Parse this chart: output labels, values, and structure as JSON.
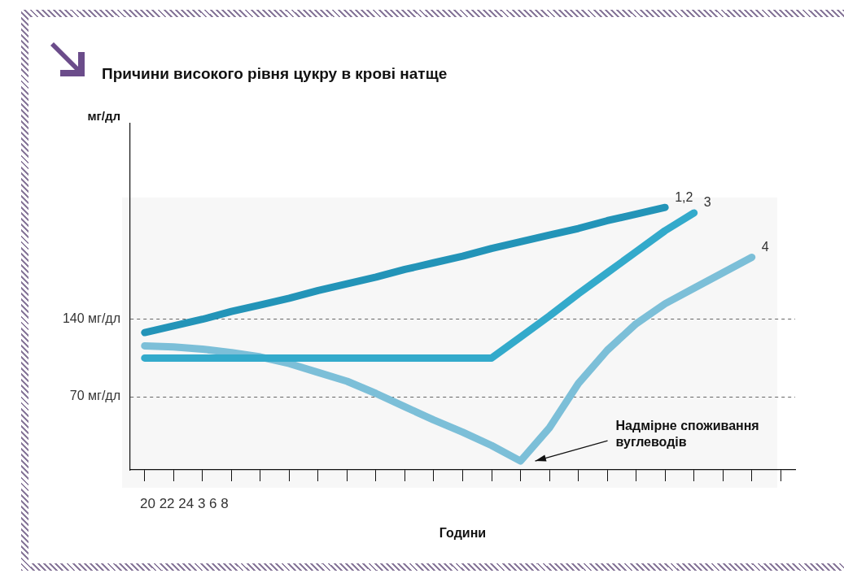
{
  "chart_data": {
    "type": "line",
    "title": "Причини високого рівня цукру в крові натще",
    "xlabel": "Години",
    "ylabel": "мг/дл",
    "categories": [
      null,
      null,
      null,
      null,
      null,
      null,
      null,
      null,
      null,
      null,
      null,
      null,
      null,
      null,
      null,
      null,
      null,
      null,
      null,
      null,
      null,
      null,
      null
    ],
    "ylim": [
      4,
      317
    ],
    "yticks": [
      {
        "value": 70,
        "label": "70 мг/дл"
      },
      {
        "value": 140,
        "label": "140 мг/дл"
      }
    ],
    "grid": "y",
    "line_style": "solid",
    "marker": "none",
    "legend": false,
    "series": [
      {
        "name": "1,2",
        "color": "#2394b8",
        "values": [
          128,
          134,
          140,
          147,
          153,
          159,
          166,
          172,
          178,
          185,
          191,
          197,
          204,
          210,
          216,
          222,
          229,
          235,
          241,
          null,
          null,
          null,
          null
        ]
      },
      {
        "name": "3",
        "color": "#33aacb",
        "values": [
          105,
          105,
          105,
          105,
          105,
          105,
          105,
          105,
          105,
          105,
          105,
          105,
          105,
          124,
          143,
          163,
          182,
          201,
          220,
          236,
          null,
          null,
          null
        ]
      },
      {
        "name": "4",
        "color": "#7cbfd8",
        "values": [
          116,
          115,
          113,
          110,
          106,
          100,
          92,
          84,
          73,
          61,
          49,
          38,
          26,
          12,
          42,
          82,
          112,
          136,
          154,
          168,
          182,
          196,
          null
        ]
      }
    ],
    "annotations": [
      "Надмірне споживання вуглеводів",
      "20 22 24 3 6 8"
    ]
  }
}
